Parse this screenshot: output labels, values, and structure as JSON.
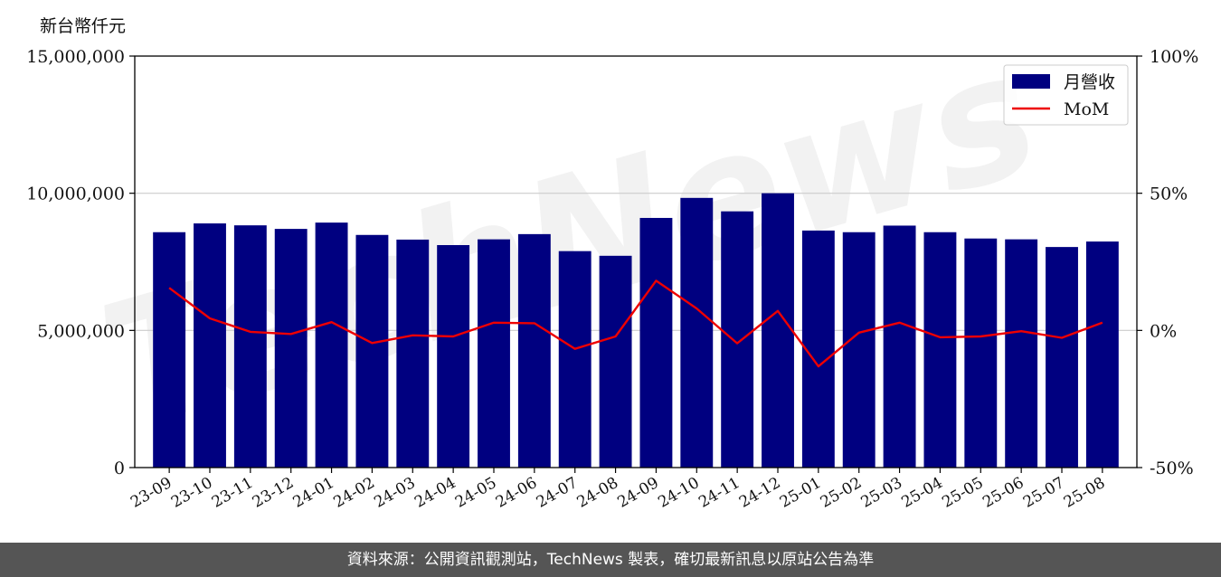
{
  "unit_label": "新台幣仟元",
  "footer_text": "資料來源：公開資訊觀測站，TechNews 製表，確切最新訊息以原站公告為準",
  "watermark": "TechNews",
  "colors": {
    "bar": "#000080",
    "line": "#ee0000",
    "grid": "#cccccc",
    "footer_bg": "#555555"
  },
  "chart_data": {
    "type": "bar",
    "title": "",
    "categories": [
      "23-09",
      "23-10",
      "23-11",
      "23-12",
      "24-01",
      "24-02",
      "24-03",
      "24-04",
      "24-05",
      "24-06",
      "24-07",
      "24-08",
      "24-09",
      "24-10",
      "24-11",
      "24-12",
      "25-01",
      "25-02",
      "25-03",
      "25-04",
      "25-05",
      "25-06",
      "25-07",
      "25-08"
    ],
    "series": [
      {
        "name": "月營收",
        "type": "bar",
        "axis": "left",
        "values": [
          8580000,
          8900000,
          8830000,
          8700000,
          8930000,
          8480000,
          8310000,
          8110000,
          8320000,
          8510000,
          7890000,
          7720000,
          9100000,
          9830000,
          9340000,
          10000000,
          8640000,
          8580000,
          8820000,
          8580000,
          8350000,
          8320000,
          8040000,
          8240000
        ]
      },
      {
        "name": "MoM",
        "type": "line",
        "axis": "right",
        "values": [
          15.5,
          4.4,
          -0.5,
          -1.3,
          3.0,
          -4.6,
          -1.8,
          -2.2,
          2.8,
          2.6,
          -6.7,
          -2.2,
          18.1,
          8.0,
          -4.7,
          7.1,
          -13.1,
          -0.8,
          2.8,
          -2.5,
          -2.2,
          -0.3,
          -2.7,
          2.8
        ]
      }
    ],
    "yleft": {
      "lim": [
        0,
        15000000
      ],
      "ticks": [
        0,
        5000000,
        10000000,
        15000000
      ],
      "tick_labels": [
        "0",
        "5,000,000",
        "10,000,000",
        "15,000,000"
      ]
    },
    "yright": {
      "lim": [
        -50,
        100
      ],
      "ticks": [
        -50,
        0,
        50,
        100
      ],
      "tick_labels": [
        "-50%",
        "0%",
        "50%",
        "100%"
      ]
    },
    "grid": "horizontal",
    "legend": {
      "placement": "top-right",
      "entries": [
        "月營收",
        "MoM"
      ]
    }
  }
}
